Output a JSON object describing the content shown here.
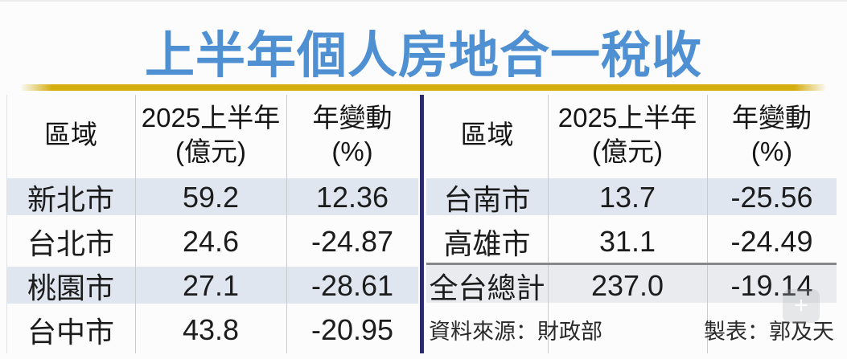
{
  "title": "上半年個人房地合一稅收",
  "colors": {
    "title_blue": "#4e90d2",
    "gold_rule": "#d4ad0e",
    "navy_divider": "#2b2b6e",
    "row_stripe": "#dfe6f0",
    "total_row_bg": "#e9ebee",
    "total_rule_gray": "#85888b"
  },
  "left_table": {
    "headers": [
      {
        "line1": "區域",
        "line2": ""
      },
      {
        "line1": "2025上半年",
        "line2": "(億元)"
      },
      {
        "line1": "年變動",
        "line2": "(%)"
      }
    ],
    "rows": [
      {
        "region": "新北市",
        "amount": "59.2",
        "change": "12.36"
      },
      {
        "region": "台北市",
        "amount": "24.6",
        "change": "-24.87"
      },
      {
        "region": "桃園市",
        "amount": "27.1",
        "change": "-28.61"
      },
      {
        "region": "台中市",
        "amount": "43.8",
        "change": "-20.95"
      }
    ]
  },
  "right_table": {
    "headers": [
      {
        "line1": "區域",
        "line2": ""
      },
      {
        "line1": "2025上半年",
        "line2": "(億元)"
      },
      {
        "line1": "年變動",
        "line2": "(%)"
      }
    ],
    "rows": [
      {
        "region": "台南市",
        "amount": "13.7",
        "change": "-25.56"
      },
      {
        "region": "高雄市",
        "amount": "31.1",
        "change": "-24.49"
      },
      {
        "region": "全台總計",
        "amount": "237.0",
        "change": "-19.14"
      }
    ],
    "footer": {
      "source": "資料來源：財政部",
      "credit": "製表：郭及天"
    }
  },
  "overlay": {
    "plus_icon": "+"
  },
  "chart_data": {
    "type": "table",
    "title": "上半年個人房地合一稅收",
    "columns": [
      "區域",
      "2025上半年(億元)",
      "年變動(%)"
    ],
    "rows": [
      [
        "新北市",
        59.2,
        12.36
      ],
      [
        "台北市",
        24.6,
        -24.87
      ],
      [
        "桃園市",
        27.1,
        -28.61
      ],
      [
        "台中市",
        43.8,
        -20.95
      ],
      [
        "台南市",
        13.7,
        -25.56
      ],
      [
        "高雄市",
        31.1,
        -24.49
      ],
      [
        "全台總計",
        237.0,
        -19.14
      ]
    ],
    "source": "資料來源：財政部",
    "credit": "製表：郭及天"
  }
}
